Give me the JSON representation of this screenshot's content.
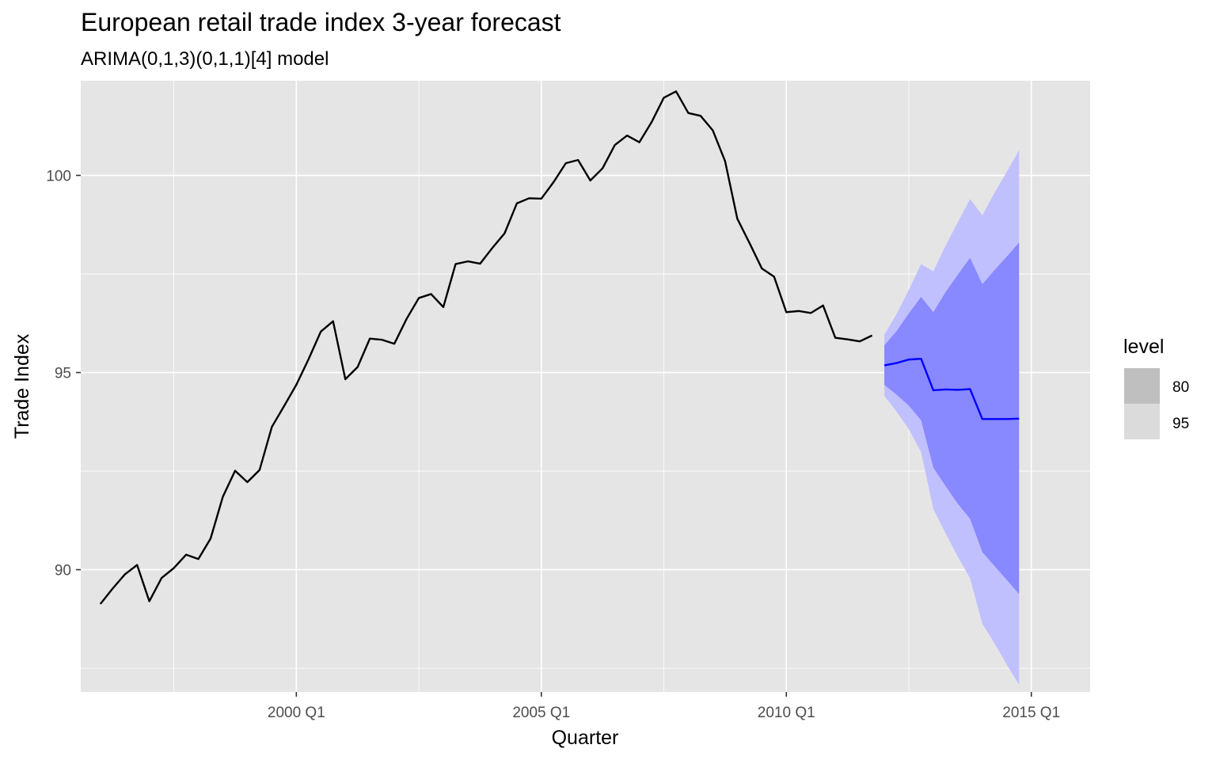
{
  "chart_data": {
    "type": "line",
    "title": "European retail trade index 3-year forecast",
    "subtitle": "ARIMA(0,1,3)(0,1,1)[4] model",
    "xlabel": "Quarter",
    "ylabel": "Trade Index",
    "x_ticks": [
      "2000 Q1",
      "2005 Q1",
      "2010 Q1",
      "2015 Q1"
    ],
    "y_ticks": [
      90,
      95,
      100
    ],
    "x_range": [
      1995.6,
      2016.2
    ],
    "y_range": [
      86.9,
      102.4
    ],
    "grid": true,
    "legend": {
      "title": "level",
      "position": "right",
      "entries": [
        "80",
        "95"
      ]
    },
    "history": {
      "start": 1996.0,
      "step": 0.25,
      "values": [
        89.13,
        89.52,
        89.88,
        90.12,
        89.2,
        89.79,
        90.04,
        90.38,
        90.27,
        90.79,
        91.85,
        92.51,
        92.22,
        92.53,
        93.62,
        94.15,
        94.69,
        95.34,
        96.04,
        96.3,
        94.83,
        95.14,
        95.86,
        95.83,
        95.73,
        96.36,
        96.89,
        96.99,
        96.66,
        97.75,
        97.82,
        97.76,
        98.16,
        98.53,
        99.29,
        99.42,
        99.41,
        99.83,
        100.31,
        100.39,
        99.87,
        100.18,
        100.77,
        101.01,
        100.84,
        101.35,
        101.97,
        102.13,
        101.58,
        101.51,
        101.14,
        100.36,
        98.9,
        98.28,
        97.64,
        97.43,
        96.53,
        96.56,
        96.51,
        96.7,
        95.88,
        95.84,
        95.79,
        95.94
      ]
    },
    "forecast": {
      "start": 2012.0,
      "step": 0.25,
      "mean": [
        95.18,
        95.24,
        95.33,
        95.35,
        94.55,
        94.57,
        94.56,
        94.58,
        93.82,
        93.82,
        93.82,
        93.83
      ],
      "lo80": [
        94.69,
        94.44,
        94.16,
        93.79,
        92.59,
        92.12,
        91.67,
        91.29,
        90.45,
        90.09,
        89.74,
        89.38
      ],
      "hi80": [
        95.69,
        96.05,
        96.5,
        96.92,
        96.53,
        97.04,
        97.48,
        97.91,
        97.24,
        97.6,
        97.94,
        98.3
      ],
      "lo95": [
        94.41,
        94.01,
        93.56,
        92.98,
        91.54,
        90.92,
        90.33,
        89.78,
        88.63,
        88.13,
        87.59,
        87.08
      ],
      "hi95": [
        95.96,
        96.48,
        97.1,
        97.75,
        97.57,
        98.22,
        98.81,
        99.4,
        98.99,
        99.56,
        100.09,
        100.64
      ]
    },
    "colors": {
      "panel": "#e5e5e5",
      "grid_major": "#ffffff",
      "history": "#000000",
      "mean": "#0000ff",
      "band80": "#8888ff",
      "band95": "#c0c0ff",
      "legend80": "#bfbfbf",
      "legend95": "#dbdbdb"
    }
  }
}
